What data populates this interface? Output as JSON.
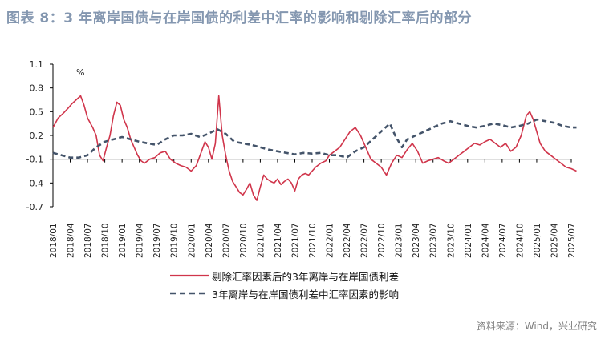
{
  "title": "图表 8：3 年离岸国债与在岸国债的利差中汇率的影响和剔除汇率后的部分",
  "source": "资料来源：Wind，兴业研究",
  "colors": {
    "series1": "#d0354b",
    "series2": "#44546a",
    "title": "#8497b0"
  },
  "chart_data": {
    "type": "line",
    "unit": "%",
    "ylim": [
      -0.7,
      1.1
    ],
    "yticks": [
      "1.1",
      "0.8",
      "0.5",
      "0.2",
      "-0.1",
      "-0.4",
      "-0.7"
    ],
    "xlabels": [
      "2018/01",
      "2018/04",
      "2018/07",
      "2018/10",
      "2019/01",
      "2019/04",
      "2019/07",
      "2019/10",
      "2020/01",
      "2020/04",
      "2020/07",
      "2020/10",
      "2021/01",
      "2021/04",
      "2021/07",
      "2021/10",
      "2022/01",
      "2022/04",
      "2022/07",
      "2022/10",
      "2023/01",
      "2023/04",
      "2023/07",
      "2023/10",
      "2024/01",
      "2024/04",
      "2024/07",
      "2024/10",
      "2025/01",
      "2025/04",
      "2025/07"
    ],
    "series": [
      {
        "name": "剔除汇率因素后的3年离岸与在岸国债利差",
        "style": "solid",
        "points": [
          [
            0,
            0.3
          ],
          [
            0.3,
            0.42
          ],
          [
            0.6,
            0.48
          ],
          [
            0.9,
            0.55
          ],
          [
            1.1,
            0.6
          ],
          [
            1.4,
            0.66
          ],
          [
            1.6,
            0.7
          ],
          [
            1.8,
            0.58
          ],
          [
            2.0,
            0.42
          ],
          [
            2.3,
            0.3
          ],
          [
            2.5,
            0.2
          ],
          [
            2.7,
            -0.05
          ],
          [
            2.9,
            -0.12
          ],
          [
            3.1,
            0.05
          ],
          [
            3.3,
            0.2
          ],
          [
            3.5,
            0.45
          ],
          [
            3.7,
            0.62
          ],
          [
            3.9,
            0.58
          ],
          [
            4.1,
            0.4
          ],
          [
            4.3,
            0.3
          ],
          [
            4.5,
            0.15
          ],
          [
            4.7,
            0.05
          ],
          [
            4.9,
            -0.05
          ],
          [
            5.1,
            -0.12
          ],
          [
            5.3,
            -0.15
          ],
          [
            5.6,
            -0.1
          ],
          [
            5.9,
            -0.08
          ],
          [
            6.2,
            -0.02
          ],
          [
            6.5,
            0.0
          ],
          [
            6.8,
            -0.1
          ],
          [
            7.1,
            -0.15
          ],
          [
            7.4,
            -0.18
          ],
          [
            7.7,
            -0.2
          ],
          [
            8.0,
            -0.25
          ],
          [
            8.3,
            -0.18
          ],
          [
            8.6,
            0.0
          ],
          [
            8.8,
            0.12
          ],
          [
            9.0,
            0.05
          ],
          [
            9.2,
            -0.1
          ],
          [
            9.4,
            0.1
          ],
          [
            9.6,
            0.7
          ],
          [
            9.8,
            0.2
          ],
          [
            10.0,
            -0.05
          ],
          [
            10.2,
            -0.25
          ],
          [
            10.4,
            -0.38
          ],
          [
            10.6,
            -0.45
          ],
          [
            10.8,
            -0.52
          ],
          [
            11.0,
            -0.55
          ],
          [
            11.2,
            -0.48
          ],
          [
            11.4,
            -0.4
          ],
          [
            11.6,
            -0.55
          ],
          [
            11.8,
            -0.62
          ],
          [
            12.0,
            -0.45
          ],
          [
            12.2,
            -0.3
          ],
          [
            12.4,
            -0.35
          ],
          [
            12.6,
            -0.38
          ],
          [
            12.8,
            -0.4
          ],
          [
            13.0,
            -0.35
          ],
          [
            13.2,
            -0.42
          ],
          [
            13.4,
            -0.38
          ],
          [
            13.6,
            -0.35
          ],
          [
            13.8,
            -0.4
          ],
          [
            14.0,
            -0.5
          ],
          [
            14.2,
            -0.35
          ],
          [
            14.4,
            -0.3
          ],
          [
            14.6,
            -0.28
          ],
          [
            14.8,
            -0.3
          ],
          [
            15.0,
            -0.25
          ],
          [
            15.2,
            -0.2
          ],
          [
            15.5,
            -0.15
          ],
          [
            15.8,
            -0.12
          ],
          [
            16.0,
            -0.05
          ],
          [
            16.3,
            0.0
          ],
          [
            16.6,
            0.05
          ],
          [
            16.9,
            0.15
          ],
          [
            17.2,
            0.25
          ],
          [
            17.5,
            0.3
          ],
          [
            17.8,
            0.2
          ],
          [
            18.1,
            0.05
          ],
          [
            18.4,
            -0.1
          ],
          [
            18.7,
            -0.15
          ],
          [
            19.0,
            -0.2
          ],
          [
            19.3,
            -0.3
          ],
          [
            19.6,
            -0.15
          ],
          [
            19.9,
            -0.05
          ],
          [
            20.2,
            -0.08
          ],
          [
            20.5,
            0.02
          ],
          [
            20.8,
            0.1
          ],
          [
            21.1,
            0.0
          ],
          [
            21.4,
            -0.15
          ],
          [
            21.7,
            -0.12
          ],
          [
            22.0,
            -0.1
          ],
          [
            22.3,
            -0.08
          ],
          [
            22.6,
            -0.12
          ],
          [
            22.9,
            -0.15
          ],
          [
            23.2,
            -0.1
          ],
          [
            23.5,
            -0.05
          ],
          [
            23.8,
            0.0
          ],
          [
            24.1,
            0.05
          ],
          [
            24.4,
            0.1
          ],
          [
            24.7,
            0.08
          ],
          [
            25.0,
            0.12
          ],
          [
            25.3,
            0.15
          ],
          [
            25.6,
            0.1
          ],
          [
            25.9,
            0.05
          ],
          [
            26.2,
            0.1
          ],
          [
            26.5,
            0.0
          ],
          [
            26.8,
            0.05
          ],
          [
            27.1,
            0.2
          ],
          [
            27.4,
            0.45
          ],
          [
            27.6,
            0.5
          ],
          [
            27.8,
            0.4
          ],
          [
            28.0,
            0.25
          ],
          [
            28.2,
            0.1
          ],
          [
            28.5,
            0.0
          ],
          [
            28.8,
            -0.05
          ],
          [
            29.1,
            -0.1
          ],
          [
            29.4,
            -0.15
          ],
          [
            29.7,
            -0.2
          ],
          [
            30.0,
            -0.22
          ],
          [
            30.3,
            -0.25
          ]
        ]
      },
      {
        "name": "3年离岸与在岸国债利差中汇率因素的影响",
        "style": "dashed",
        "points": [
          [
            0,
            -0.02
          ],
          [
            0.5,
            -0.05
          ],
          [
            1.0,
            -0.08
          ],
          [
            1.5,
            -0.08
          ],
          [
            2.0,
            -0.05
          ],
          [
            2.5,
            0.05
          ],
          [
            3.0,
            0.12
          ],
          [
            3.5,
            0.15
          ],
          [
            4.0,
            0.18
          ],
          [
            4.5,
            0.15
          ],
          [
            5.0,
            0.12
          ],
          [
            5.5,
            0.1
          ],
          [
            6.0,
            0.08
          ],
          [
            6.5,
            0.15
          ],
          [
            7.0,
            0.2
          ],
          [
            7.5,
            0.2
          ],
          [
            8.0,
            0.22
          ],
          [
            8.5,
            0.18
          ],
          [
            9.0,
            0.22
          ],
          [
            9.5,
            0.28
          ],
          [
            10.0,
            0.22
          ],
          [
            10.5,
            0.12
          ],
          [
            11.0,
            0.1
          ],
          [
            11.5,
            0.08
          ],
          [
            12.0,
            0.05
          ],
          [
            12.5,
            0.02
          ],
          [
            13.0,
            0.0
          ],
          [
            13.5,
            -0.02
          ],
          [
            14.0,
            -0.04
          ],
          [
            14.5,
            -0.02
          ],
          [
            15.0,
            -0.03
          ],
          [
            15.5,
            -0.02
          ],
          [
            16.0,
            -0.05
          ],
          [
            16.5,
            -0.05
          ],
          [
            17.0,
            -0.08
          ],
          [
            17.5,
            0.0
          ],
          [
            18.0,
            0.05
          ],
          [
            18.5,
            0.15
          ],
          [
            19.0,
            0.25
          ],
          [
            19.5,
            0.35
          ],
          [
            19.8,
            0.2
          ],
          [
            20.2,
            0.05
          ],
          [
            20.5,
            0.15
          ],
          [
            21.0,
            0.2
          ],
          [
            21.5,
            0.25
          ],
          [
            22.0,
            0.3
          ],
          [
            22.5,
            0.35
          ],
          [
            23.0,
            0.38
          ],
          [
            23.5,
            0.35
          ],
          [
            24.0,
            0.32
          ],
          [
            24.5,
            0.3
          ],
          [
            25.0,
            0.32
          ],
          [
            25.5,
            0.35
          ],
          [
            26.0,
            0.33
          ],
          [
            26.5,
            0.3
          ],
          [
            27.0,
            0.32
          ],
          [
            27.5,
            0.35
          ],
          [
            28.0,
            0.4
          ],
          [
            28.5,
            0.38
          ],
          [
            29.0,
            0.36
          ],
          [
            29.5,
            0.32
          ],
          [
            30.0,
            0.3
          ],
          [
            30.3,
            0.3
          ]
        ]
      }
    ]
  }
}
